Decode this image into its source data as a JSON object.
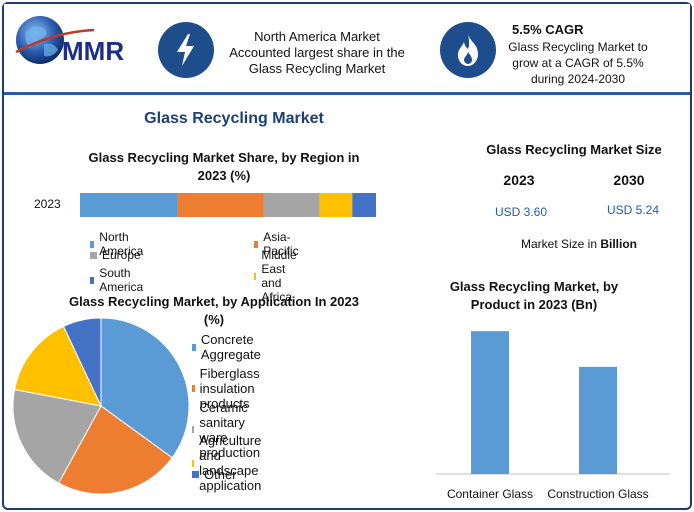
{
  "header": {
    "logo_text": "MMR",
    "box1": {
      "icon": "lightning-icon",
      "lines": [
        "North America Market",
        "Accounted largest share in the",
        "Glass Recycling Market"
      ]
    },
    "box2": {
      "icon": "flame-icon",
      "title": "5.5% CAGR",
      "lines": [
        "Glass Recycling Market to",
        "grow at a CAGR of 5.5%",
        "during 2024-2030"
      ]
    }
  },
  "main_title": "Glass Recycling Market",
  "market_size": {
    "title": "Glass Recycling Market Size",
    "year1": "2023",
    "year2": "2030",
    "value1": "USD 3.60",
    "value2": "USD 5.24",
    "note_prefix": "Market Size in ",
    "note_unit": "Billion"
  },
  "colors": {
    "blue": "#5b9bd5",
    "orange": "#ed7d31",
    "gray": "#a5a5a5",
    "yellow": "#ffc000",
    "darkblue": "#4472c4",
    "navy": "#1e4d8c"
  },
  "chart_data": [
    {
      "type": "bar",
      "orientation": "horizontal-stacked",
      "title_lines": [
        "Glass Recycling Market Share, by Region in",
        "2023 (%)"
      ],
      "categories": [
        "2023"
      ],
      "series": [
        {
          "name": "North America",
          "values": [
            33
          ],
          "color": "#5b9bd5"
        },
        {
          "name": "Asia-Pacific",
          "values": [
            29
          ],
          "color": "#ed7d31"
        },
        {
          "name": "Europe",
          "values": [
            19
          ],
          "color": "#a5a5a5"
        },
        {
          "name": "Middle East and Africa",
          "values": [
            11
          ],
          "color": "#ffc000"
        },
        {
          "name": "South America",
          "values": [
            8
          ],
          "color": "#4472c4"
        }
      ],
      "legend_placement": "bottom"
    },
    {
      "type": "pie",
      "title_lines": [
        "Glass Recycling Market, by Application In 2023",
        "(%)"
      ],
      "slices": [
        {
          "label": "Concrete Aggregate",
          "value": 35,
          "color": "#5b9bd5"
        },
        {
          "label": "Fiberglass insulation products",
          "value": 23,
          "color": "#ed7d31"
        },
        {
          "label": "Ceramic sanitary ware production",
          "value": 20,
          "color": "#a5a5a5"
        },
        {
          "label": "Agriculture and landscape application",
          "value": 15,
          "color": "#ffc000"
        },
        {
          "label": "Other",
          "value": 7,
          "color": "#4472c4"
        }
      ],
      "legend_placement": "right"
    },
    {
      "type": "bar",
      "title_lines": [
        "Glass Recycling Market, by",
        "Product in 2023 (Bn)"
      ],
      "categories": [
        "Container Glass",
        "Construction Glass"
      ],
      "values": [
        2.0,
        1.5
      ],
      "ylim": [
        0,
        2.1
      ],
      "color": "#5b9bd5"
    }
  ]
}
